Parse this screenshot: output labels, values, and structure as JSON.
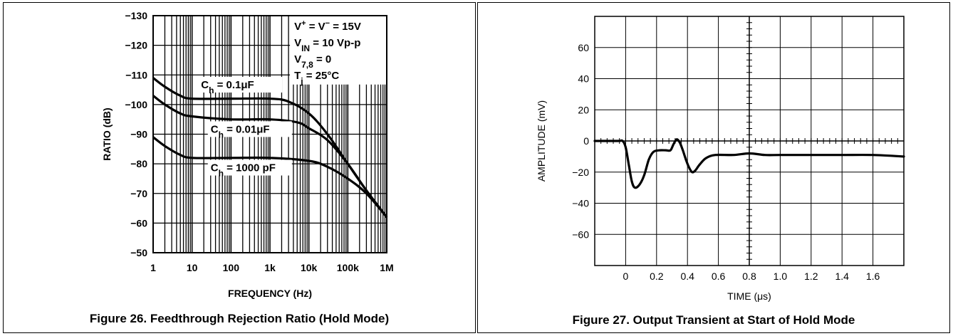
{
  "chart_data": [
    {
      "type": "line",
      "caption": "Figure 26. Feedthrough Rejection Ratio (Hold Mode)",
      "xlabel": "FREQUENCY (Hz)",
      "ylabel": "RATIO (dB)",
      "x_scale": "log",
      "xlim": [
        1,
        1000000
      ],
      "ylim": [
        -50,
        -130
      ],
      "x_ticks": [
        1,
        10,
        100,
        1000,
        10000,
        100000,
        1000000
      ],
      "x_tick_labels": [
        "1",
        "10",
        "100",
        "1k",
        "10k",
        "100k",
        "1M"
      ],
      "y_ticks": [
        -130,
        -120,
        -110,
        -100,
        -90,
        -80,
        -70,
        -60,
        -50
      ],
      "y_tick_labels": [
        "−130",
        "−120",
        "−110",
        "−100",
        "−90",
        "−80",
        "−70",
        "−60",
        "−50"
      ],
      "grid": true,
      "conditions": [
        {
          "main": "V",
          "sup": "+",
          "mid": " = V",
          "sup2": "−",
          "tail": " = 15V"
        },
        {
          "main": "V",
          "sub": "IN",
          "tail": " = 10 Vp-p"
        },
        {
          "main": "V",
          "sub": "7,8",
          "tail": " = 0"
        },
        {
          "main": "T",
          "sub": "j",
          "tail": " = 25°C"
        }
      ],
      "series": [
        {
          "label_main": "C",
          "label_sub": "h",
          "label_tail": " = 0.1μF",
          "x": [
            1,
            2,
            5,
            10,
            100,
            1000,
            3000,
            10000,
            30000,
            100000,
            300000,
            1000000
          ],
          "y": [
            -109,
            -106,
            -103,
            -102,
            -102,
            -102,
            -101,
            -97,
            -90,
            -80,
            -71,
            -62
          ]
        },
        {
          "label_main": "C",
          "label_sub": "h",
          "label_tail": " = 0.01μF",
          "x": [
            1,
            2,
            5,
            10,
            100,
            1000,
            5000,
            10000,
            30000,
            100000,
            300000,
            1000000
          ],
          "y": [
            -103,
            -100,
            -97,
            -96,
            -95,
            -95,
            -94,
            -92,
            -88,
            -80,
            -71,
            -62
          ]
        },
        {
          "label_main": "C",
          "label_sub": "h",
          "label_tail": " = 1000 pF",
          "x": [
            1,
            2,
            5,
            10,
            100,
            1000,
            10000,
            30000,
            100000,
            300000,
            1000000
          ],
          "y": [
            -89,
            -86,
            -83,
            -82,
            -82,
            -82,
            -81,
            -79,
            -75,
            -70,
            -62
          ]
        }
      ]
    },
    {
      "type": "line",
      "caption": "Figure 27. Output Transient at Start of Hold Mode",
      "xlabel": "TIME (μs)",
      "ylabel": "AMPLITUDE (mV)",
      "xlim": [
        -0.2,
        1.8
      ],
      "ylim": [
        -80,
        80
      ],
      "x_ticks": [
        0,
        0.2,
        0.4,
        0.6,
        0.8,
        1.0,
        1.2,
        1.4,
        1.6
      ],
      "x_tick_labels": [
        "0",
        "0.2",
        "0.4",
        "0.6",
        "0.8",
        "1.0",
        "1.2",
        "1.4",
        "1.6"
      ],
      "y_ticks": [
        60,
        40,
        20,
        0,
        -20,
        -40,
        -60
      ],
      "y_tick_labels": [
        "60",
        "40",
        "20",
        "0",
        "−20",
        "−40",
        "−60"
      ],
      "grid": true,
      "series": [
        {
          "x": [
            -0.2,
            -0.05,
            -0.02,
            0.0,
            0.02,
            0.04,
            0.06,
            0.09,
            0.12,
            0.15,
            0.18,
            0.22,
            0.26,
            0.29,
            0.31,
            0.33,
            0.35,
            0.37,
            0.39,
            0.41,
            0.43,
            0.45,
            0.48,
            0.52,
            0.58,
            0.7,
            0.8,
            0.9,
            1.0,
            1.2,
            1.4,
            1.6,
            1.8
          ],
          "y": [
            0,
            0,
            0,
            -4,
            -15,
            -26,
            -30,
            -28,
            -22,
            -12,
            -7,
            -6,
            -6,
            -6,
            -2,
            1,
            -1,
            -6,
            -12,
            -17,
            -20,
            -19,
            -15,
            -11,
            -9,
            -9,
            -8,
            -9,
            -9,
            -9,
            -9,
            -9,
            -10
          ]
        }
      ]
    }
  ]
}
